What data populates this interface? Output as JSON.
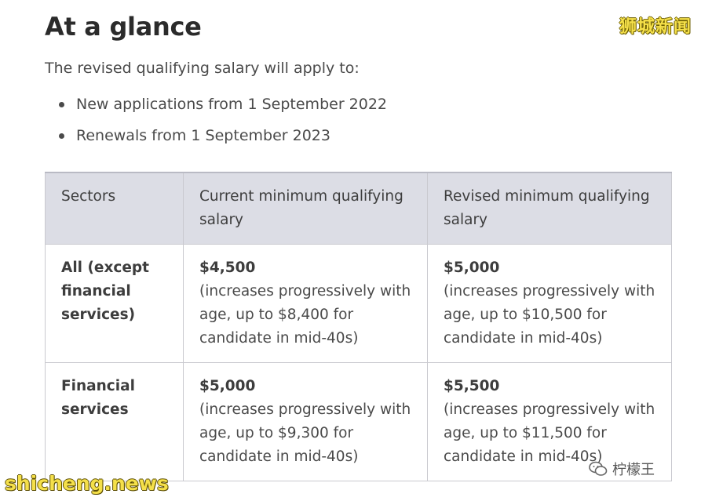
{
  "heading": "At a glance",
  "intro": "The revised qualifying salary will apply to:",
  "bullets": [
    "New applications from 1 September 2022",
    "Renewals from 1 September 2023"
  ],
  "table": {
    "headers": [
      "Sectors",
      "Current minimum qualifying salary",
      "Revised minimum qualifying salary"
    ],
    "rows": [
      {
        "sector": "All (except financial services)",
        "current_amount": "$4,500",
        "current_desc": "(increases progressively with age, up to $8,400 for candidate in mid-40s)",
        "revised_amount": "$5,000",
        "revised_desc": "(increases progressively with age, up to $10,500 for candidate in mid-40s)"
      },
      {
        "sector": "Financial services",
        "current_amount": "$5,000",
        "current_desc": "(increases progressively with age, up to $9,300 for candidate in mid-40s)",
        "revised_amount": "$5,500",
        "revised_desc": "(increases progressively with age, up to $11,500 for candidate in mid-40s)"
      }
    ]
  },
  "watermarks": {
    "top_right": "狮城新闻",
    "bottom_left": "shicheng.news",
    "bottom_right": "柠檬王"
  }
}
